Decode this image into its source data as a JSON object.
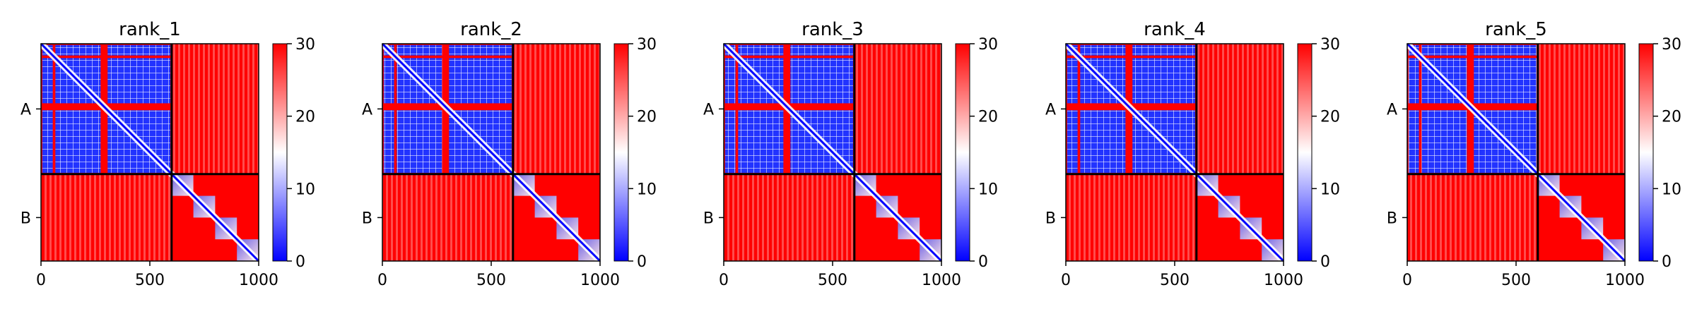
{
  "chart_data": {
    "type": "heatmap",
    "colormap": {
      "name": "bwr",
      "low_color": "#0000ff",
      "mid_color": "#ffffff",
      "high_color": "#ff0000"
    },
    "colorbar": {
      "range": [
        0,
        30
      ],
      "ticks": [
        0,
        10,
        20,
        30
      ],
      "tick_labels": [
        "0",
        "10",
        "20",
        "30"
      ]
    },
    "axes": {
      "x_range": [
        0,
        1000
      ],
      "x_ticks": [
        0,
        500,
        1000
      ],
      "x_tick_labels": [
        "0",
        "500",
        "1000"
      ],
      "y_range": [
        0,
        1000
      ],
      "y_tick_labels": [
        "A",
        "B"
      ]
    },
    "chains": [
      {
        "name": "A",
        "start": 0,
        "end": 600
      },
      {
        "name": "B",
        "start": 600,
        "end": 1000
      }
    ],
    "chain_boundary": 600,
    "chain_a_blocks": [
      [
        0,
        60
      ],
      [
        60,
        280
      ],
      [
        300,
        600
      ]
    ],
    "chain_a_gaps": [
      [
        280,
        300
      ],
      [
        600,
        620
      ]
    ],
    "chain_b_blocks": [
      [
        600,
        700
      ],
      [
        700,
        800
      ],
      [
        800,
        900
      ],
      [
        900,
        1000
      ]
    ],
    "panels": [
      {
        "title": "rank_1"
      },
      {
        "title": "rank_2"
      },
      {
        "title": "rank_3"
      },
      {
        "title": "rank_4"
      },
      {
        "title": "rank_5"
      }
    ]
  }
}
